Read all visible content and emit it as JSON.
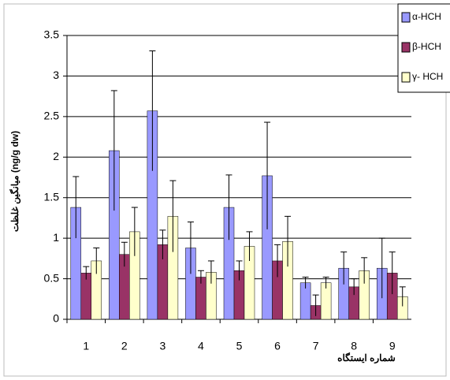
{
  "chart_data": {
    "type": "bar",
    "categories": [
      "1",
      "2",
      "3",
      "4",
      "5",
      "6",
      "7",
      "8",
      "9"
    ],
    "x_label": "شماره ایستگاه",
    "y_label": "میانگین غلظت (ng/g dw)",
    "series": [
      {
        "name": "α-HCH",
        "color": "#9999ff",
        "values": [
          1.38,
          2.08,
          2.57,
          0.88,
          1.38,
          1.77,
          0.45,
          0.63,
          0.63
        ],
        "errors": [
          0.38,
          0.74,
          0.74,
          0.32,
          0.4,
          0.66,
          0.07,
          0.2,
          0.37
        ]
      },
      {
        "name": "β-HCH",
        "color": "#993366",
        "values": [
          0.57,
          0.8,
          0.92,
          0.52,
          0.6,
          0.72,
          0.17,
          0.4,
          0.57
        ],
        "errors": [
          0.08,
          0.15,
          0.18,
          0.08,
          0.12,
          0.2,
          0.13,
          0.1,
          0.26
        ]
      },
      {
        "name": "γ- HCH",
        "color": "#ffffcc",
        "values": [
          0.72,
          1.08,
          1.27,
          0.58,
          0.9,
          0.96,
          0.45,
          0.6,
          0.28
        ],
        "errors": [
          0.16,
          0.3,
          0.44,
          0.14,
          0.18,
          0.31,
          0.07,
          0.16,
          0.12
        ]
      }
    ],
    "ylim": [
      0,
      3.5
    ],
    "yticks": [
      0,
      0.5,
      1,
      1.5,
      2,
      2.5,
      3,
      3.5
    ],
    "grid": true,
    "legend": "top-right"
  }
}
